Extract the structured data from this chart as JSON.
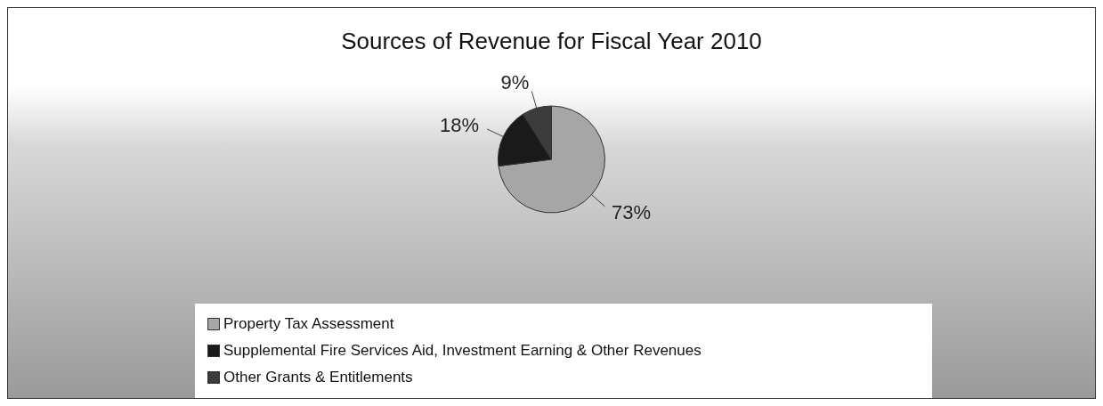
{
  "chart_data": {
    "type": "pie",
    "title": "Sources of Revenue for Fiscal Year 2010",
    "categories": [
      "Property Tax Assessment",
      "Supplemental Fire Services Aid, Investment Earning & Other Revenues",
      "Other Grants & Entitlements"
    ],
    "values": [
      73,
      18,
      9
    ],
    "colors": [
      "#a6a6a6",
      "#1a1a1a",
      "#3c3c3c"
    ],
    "value_labels": [
      "73%",
      "18%",
      "9%"
    ],
    "legend": "bottom left"
  }
}
